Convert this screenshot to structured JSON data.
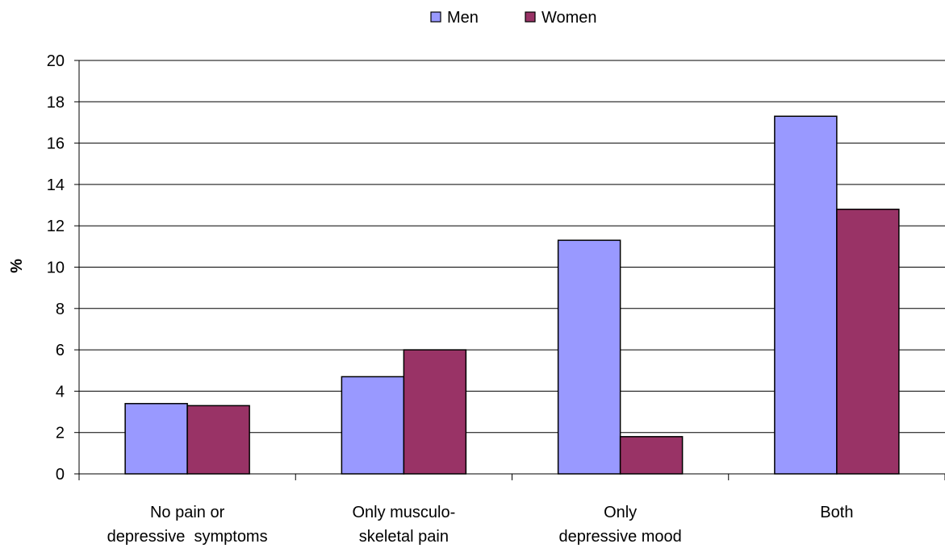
{
  "chart_data": {
    "type": "bar",
    "title": "",
    "xlabel": "",
    "ylabel": "%",
    "ylim": [
      0,
      20
    ],
    "yticks": [
      0,
      2,
      4,
      6,
      8,
      10,
      12,
      14,
      16,
      18,
      20
    ],
    "grid": true,
    "legend_position": "top-center",
    "categories": [
      [
        "No pain or",
        "depressive  symptoms"
      ],
      [
        "Only musculo-",
        "skeletal pain"
      ],
      [
        "Only",
        "depressive mood"
      ],
      [
        "Both"
      ]
    ],
    "series": [
      {
        "name": "Men",
        "color": "#9999ff",
        "values": [
          3.4,
          4.7,
          11.3,
          17.3
        ]
      },
      {
        "name": "Women",
        "color": "#993366",
        "values": [
          3.3,
          6.0,
          1.8,
          12.8
        ]
      }
    ]
  }
}
